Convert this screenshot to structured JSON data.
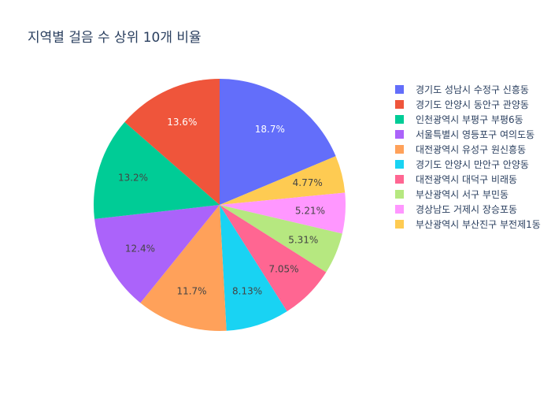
{
  "chart_data": {
    "type": "pie",
    "title": "지역별 걸음 수 상위 10개 비율",
    "labels": [
      "경기도 성남시 수정구 신흥동",
      "경기도 안양시 동안구 관양동",
      "인천광역시 부평구 부평6동",
      "서울특별시 영등포구 여의도동",
      "대전광역시 유성구 원신흥동",
      "경기도 안양시 만안구 안양동",
      "대전광역시 대덕구 비래동",
      "부산광역시 서구 부민동",
      "경상남도 거제시 장승포동",
      "부산광역시 부산진구 부전제1동"
    ],
    "values": [
      18.7,
      13.6,
      13.2,
      12.4,
      11.7,
      8.13,
      7.05,
      5.31,
      5.21,
      4.77
    ],
    "value_labels": [
      "18.7%",
      "13.6%",
      "13.2%",
      "12.4%",
      "11.7%",
      "8.13%",
      "7.05%",
      "5.31%",
      "5.21%",
      "4.77%"
    ],
    "colors": [
      "#636efa",
      "#EF553B",
      "#00cc96",
      "#ab63fa",
      "#FFA15A",
      "#19d3f3",
      "#FF6692",
      "#B6E880",
      "#FF97FF",
      "#FECB52"
    ],
    "legend_position": "right",
    "clockwise_order": [
      0,
      9,
      8,
      7,
      6,
      5,
      4,
      3,
      2,
      1
    ]
  }
}
